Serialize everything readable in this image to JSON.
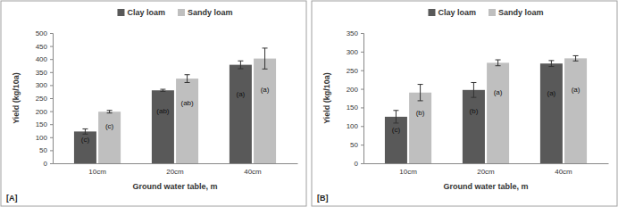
{
  "chart_data": [
    {
      "type": "bar",
      "title": "[A]",
      "x_label": "Ground water table, m",
      "y_label": "Yield (kg/10a)",
      "categories": [
        "10cm",
        "20cm",
        "40cm"
      ],
      "series": [
        {
          "name": "Clay loam",
          "color": "#595959",
          "values": [
            122,
            280,
            378
          ],
          "error": [
            10,
            4,
            15
          ],
          "annotations": [
            "(c)",
            "(ab)",
            "(a)"
          ]
        },
        {
          "name": "Sandy loam",
          "color": "#bfbfbf",
          "values": [
            198,
            325,
            402
          ],
          "error": [
            5,
            15,
            40
          ],
          "annotations": [
            "(c)",
            "(ab)",
            "(a)"
          ]
        }
      ],
      "ylim": [
        0,
        500
      ],
      "yticks": [
        0,
        50,
        100,
        150,
        200,
        250,
        300,
        350,
        400,
        450,
        500
      ],
      "grid": false,
      "legend": "top"
    },
    {
      "type": "bar",
      "title": "[B]",
      "x_label": "Ground water table, m",
      "y_label": "Yield (kg/10a)",
      "categories": [
        "10cm",
        "20cm",
        "40cm"
      ],
      "series": [
        {
          "name": "Clay loam",
          "color": "#595959",
          "values": [
            125,
            197,
            268
          ],
          "error": [
            17,
            20,
            8
          ],
          "annotations": [
            "(c)",
            "(b)",
            "(a)"
          ]
        },
        {
          "name": "Sandy loam",
          "color": "#bfbfbf",
          "values": [
            190,
            270,
            282
          ],
          "error": [
            22,
            8,
            7
          ],
          "annotations": [
            "(b)",
            "(a)",
            "(a)"
          ]
        }
      ],
      "ylim": [
        0,
        350
      ],
      "yticks": [
        0,
        50,
        100,
        150,
        200,
        250,
        300,
        350
      ],
      "grid": false,
      "legend": "top"
    }
  ]
}
